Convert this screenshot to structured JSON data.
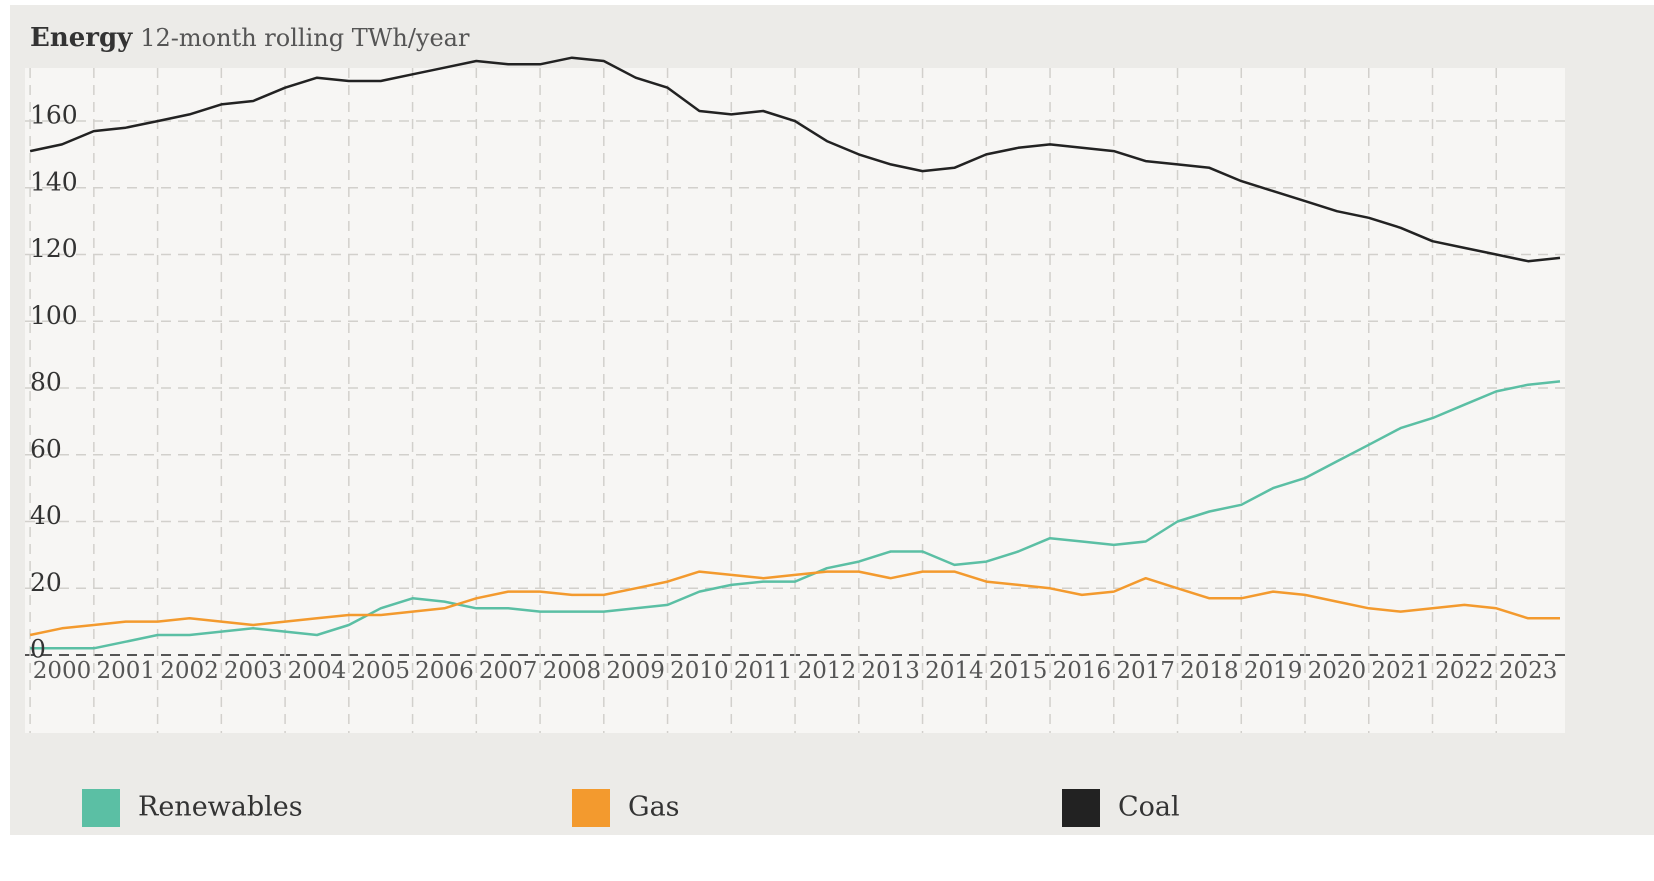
{
  "chart_data": {
    "type": "line",
    "title": "Energy",
    "subtitle": "12-month rolling TWh/year",
    "x": [
      2000,
      2000.5,
      2001,
      2001.5,
      2002,
      2002.5,
      2003,
      2003.5,
      2004,
      2004.5,
      2005,
      2005.5,
      2006,
      2006.5,
      2007,
      2007.5,
      2008,
      2008.5,
      2009,
      2009.5,
      2010,
      2010.5,
      2011,
      2011.5,
      2012,
      2012.5,
      2013,
      2013.5,
      2014,
      2014.5,
      2015,
      2015.5,
      2016,
      2016.5,
      2017,
      2017.5,
      2018,
      2018.5,
      2019,
      2019.5,
      2020,
      2020.5,
      2021,
      2021.5,
      2022,
      2022.5,
      2023,
      2023.5,
      2024
    ],
    "series": [
      {
        "name": "Renewables",
        "color": "#5bbfa4",
        "values": [
          2,
          2,
          2,
          4,
          6,
          6,
          7,
          8,
          7,
          6,
          9,
          14,
          17,
          16,
          14,
          14,
          13,
          13,
          13,
          14,
          15,
          19,
          21,
          22,
          22,
          26,
          28,
          31,
          31,
          27,
          28,
          31,
          35,
          34,
          33,
          34,
          40,
          43,
          45,
          50,
          53,
          58,
          63,
          68,
          71,
          75,
          79,
          81,
          82
        ]
      },
      {
        "name": "Gas",
        "color": "#f39a2e",
        "values": [
          6,
          8,
          9,
          10,
          10,
          11,
          10,
          9,
          10,
          11,
          12,
          12,
          13,
          14,
          17,
          19,
          19,
          18,
          18,
          20,
          22,
          25,
          24,
          23,
          24,
          25,
          25,
          23,
          25,
          25,
          22,
          21,
          20,
          18,
          19,
          23,
          20,
          17,
          17,
          19,
          18,
          16,
          14,
          13,
          14,
          15,
          14,
          11,
          11
        ]
      },
      {
        "name": "Coal",
        "color": "#222222",
        "values": [
          151,
          153,
          157,
          158,
          160,
          162,
          165,
          166,
          170,
          173,
          172,
          172,
          174,
          176,
          178,
          177,
          177,
          179,
          178,
          173,
          170,
          163,
          162,
          163,
          160,
          154,
          150,
          147,
          145,
          146,
          150,
          152,
          153,
          152,
          151,
          148,
          147,
          146,
          142,
          139,
          136,
          133,
          131,
          128,
          124,
          122,
          120,
          118,
          119
        ]
      }
    ],
    "xlim": [
      1999.92,
      2024.0
    ],
    "xticks": [
      2000,
      2001,
      2002,
      2003,
      2004,
      2005,
      2006,
      2007,
      2008,
      2009,
      2010,
      2011,
      2012,
      2013,
      2014,
      2015,
      2016,
      2017,
      2018,
      2019,
      2020,
      2021,
      2022,
      2023
    ],
    "ylim": [
      0,
      175
    ],
    "yticks": [
      0,
      20,
      40,
      60,
      80,
      100,
      120,
      140,
      160
    ],
    "grid": true
  }
}
